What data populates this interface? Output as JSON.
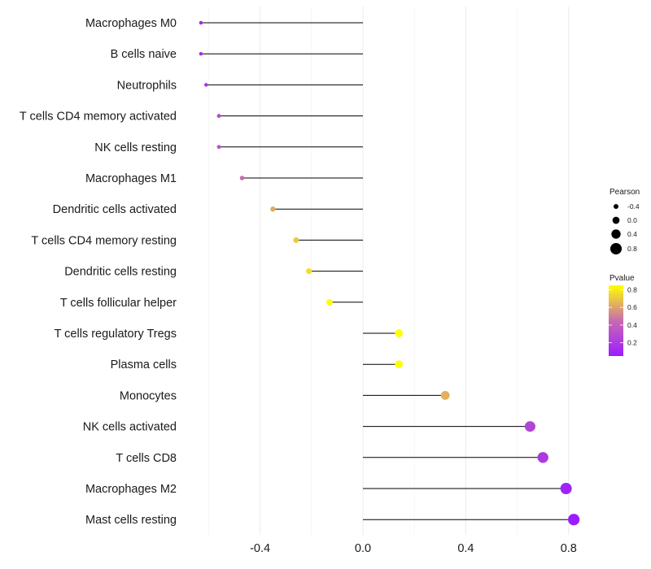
{
  "chart_data": {
    "type": "lollipop",
    "orientation": "horizontal",
    "title": "",
    "xlabel": "",
    "ylabel": "",
    "xlim": [
      -0.8,
      0.86
    ],
    "xticks": [
      -0.4,
      0.0,
      0.4,
      0.8
    ],
    "xtick_labels": [
      "-0.4",
      "0.0",
      "0.4",
      "0.8"
    ],
    "grid": true,
    "categories": [
      "Macrophages M0",
      "B cells naive",
      "Neutrophils",
      "T cells CD4 memory activated",
      "NK cells resting",
      "Macrophages M1",
      "Dendritic cells activated",
      "T cells CD4 memory resting",
      "Dendritic cells resting",
      "T cells follicular helper",
      "T cells regulatory  Tregs ",
      "Plasma cells",
      "Monocytes",
      "NK cells activated",
      "T cells CD8",
      "Macrophages M2",
      "Mast cells resting"
    ],
    "pearson": [
      -0.63,
      -0.63,
      -0.61,
      -0.56,
      -0.56,
      -0.47,
      -0.35,
      -0.26,
      -0.21,
      -0.13,
      0.14,
      0.14,
      0.32,
      0.65,
      0.7,
      0.79,
      0.82
    ],
    "pvalue": [
      0.1,
      0.12,
      0.18,
      0.3,
      0.32,
      0.45,
      0.62,
      0.7,
      0.76,
      0.85,
      0.85,
      0.85,
      0.64,
      0.25,
      0.2,
      0.08,
      0.05
    ],
    "legend_size": {
      "title": "Pearson",
      "labels": [
        "-0.4",
        "0.0",
        "0.4",
        "0.8"
      ],
      "values": [
        -0.4,
        0.0,
        0.4,
        0.8
      ]
    },
    "legend_color": {
      "title": "Pvalue",
      "labels": [
        "0.8",
        "0.6",
        "0.4",
        "0.2"
      ],
      "values": [
        0.8,
        0.6,
        0.4,
        0.2
      ],
      "range": [
        0.05,
        0.85
      ],
      "low_color": "#9B1DFF",
      "mid_color": "#C86BB0",
      "high_color": "#FFFF00"
    },
    "legend_position": "right"
  },
  "colors": {
    "stem": "#000000",
    "grid": "#EBEBEB",
    "text": "#1a1a1a"
  }
}
